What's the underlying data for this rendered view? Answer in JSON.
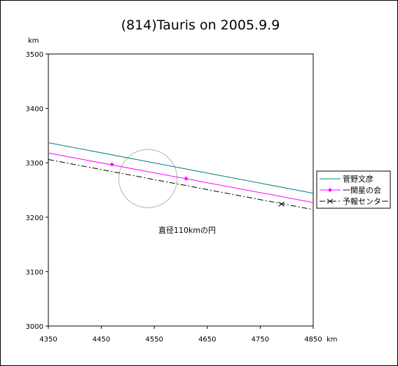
{
  "chart_data": {
    "type": "line",
    "title": "(814)Tauris on 2005.9.9",
    "xlabel": "km",
    "ylabel": "km",
    "xlim": [
      4350,
      4850
    ],
    "ylim": [
      3000,
      3500
    ],
    "x_ticks": [
      "4350",
      "4450",
      "4550",
      "4650",
      "4750",
      "4850"
    ],
    "y_ticks": [
      "3000",
      "3100",
      "3200",
      "3300",
      "3400",
      "3500"
    ],
    "grid": false,
    "legend_position": "right",
    "annotation": "直径110kmの円",
    "circle": {
      "center": [
        4538,
        3271
      ],
      "diameter": 110
    },
    "series": [
      {
        "name": "菅野文彦",
        "color": "#008080",
        "style": "solid",
        "marker": "none",
        "line": [
          [
            4350,
            3337
          ],
          [
            4850,
            3244
          ]
        ],
        "points": []
      },
      {
        "name": "一関星の会",
        "color": "#ff00ff",
        "style": "solid",
        "marker": "diamond",
        "line": [
          [
            4350,
            3318
          ],
          [
            4850,
            3227
          ]
        ],
        "points": [
          [
            4470,
            3297
          ],
          [
            4610,
            3271
          ]
        ]
      },
      {
        "name": "予報センター",
        "color": "#000000",
        "style": "dashdot",
        "marker": "x",
        "line": [
          [
            4350,
            3306
          ],
          [
            4850,
            3214
          ]
        ],
        "points": [
          [
            4790,
            3224
          ]
        ]
      }
    ]
  }
}
